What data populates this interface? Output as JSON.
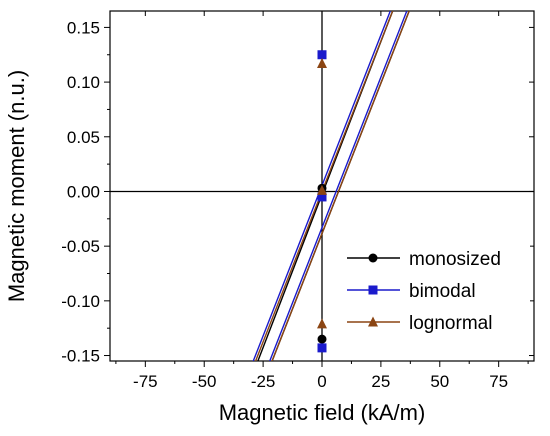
{
  "chart_data": {
    "type": "line",
    "xlabel": "Magnetic field (kA/m)",
    "ylabel": "Magnetic moment (n.u.)",
    "xlim": [
      -90,
      90
    ],
    "ylim": [
      -0.155,
      0.165
    ],
    "x_ticks": [
      -75,
      -50,
      -25,
      0,
      25,
      50,
      75
    ],
    "y_ticks": [
      0.15,
      0.1,
      0.05,
      0.0,
      -0.05,
      -0.1,
      -0.15
    ],
    "x_tick_labels": [
      "-75",
      "-50",
      "-25",
      "0",
      "25",
      "50",
      "75"
    ],
    "y_tick_labels": [
      "0.15",
      "0.10",
      "0.05",
      "0.00",
      "-0.05",
      "-0.10",
      "-0.15"
    ],
    "grid": false,
    "legend_position": "bottom-right",
    "reference_lines": {
      "horizontal_at_y": 0,
      "vertical_at_x": 0
    },
    "series": [
      {
        "name": "monosized",
        "color": "#000000",
        "marker": "circle",
        "branches": [
          {
            "x": [
              -29,
              30
            ],
            "y": [
              -0.165,
              0.165
            ]
          },
          {
            "x": [
              -23,
              37
            ],
            "y": [
              -0.165,
              0.165
            ]
          }
        ],
        "points": [
          {
            "x": 0,
            "y": 0.125
          },
          {
            "x": 0,
            "y": 0.003
          },
          {
            "x": 0,
            "y": -0.135
          }
        ]
      },
      {
        "name": "bimodal",
        "color": "#1a1acc",
        "marker": "square",
        "branches": [
          {
            "x": [
              -31,
              29
            ],
            "y": [
              -0.165,
              0.165
            ]
          },
          {
            "x": [
              -24,
              36
            ],
            "y": [
              -0.165,
              0.165
            ]
          }
        ],
        "points": [
          {
            "x": 0,
            "y": 0.125
          },
          {
            "x": 0,
            "y": -0.005
          },
          {
            "x": 0,
            "y": -0.143
          }
        ]
      },
      {
        "name": "lognormal",
        "color": "#8b4513",
        "marker": "triangle",
        "branches": [
          {
            "x": [
              -30,
              30
            ],
            "y": [
              -0.165,
              0.165
            ]
          },
          {
            "x": [
              -23,
              37
            ],
            "y": [
              -0.165,
              0.165
            ]
          }
        ],
        "points": [
          {
            "x": 0,
            "y": 0.117
          },
          {
            "x": 0,
            "y": 0.001
          },
          {
            "x": 0,
            "y": -0.121
          }
        ]
      }
    ]
  }
}
